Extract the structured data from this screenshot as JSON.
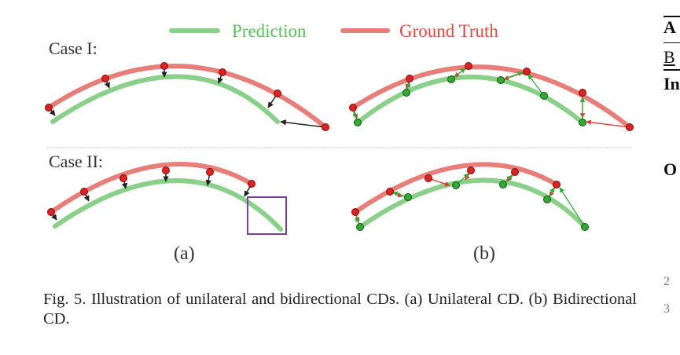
{
  "legend": {
    "prediction_label": "Prediction",
    "ground_truth_label": "Ground Truth",
    "prediction_color": "#8ad08a",
    "ground_truth_color": "#e87e7a"
  },
  "cases": {
    "case1_label": "Case I:",
    "case2_label": "Case II:"
  },
  "panels": {
    "a_label": "(a)",
    "b_label": "(b)"
  },
  "caption": "Fig. 5.  Illustration of unilateral and bidirectional CDs. (a) Unilateral CD. (b) Bidirectional CD.",
  "adjacent_column": {
    "line1": "A",
    "line2": "B",
    "line3": "In",
    "line4": "O",
    "line5": "2",
    "line6": "3"
  },
  "colors": {
    "point_red": "#dd2222",
    "point_green": "#33aa33",
    "box": "#7a3e9d",
    "divider": "#c8c8c8"
  }
}
